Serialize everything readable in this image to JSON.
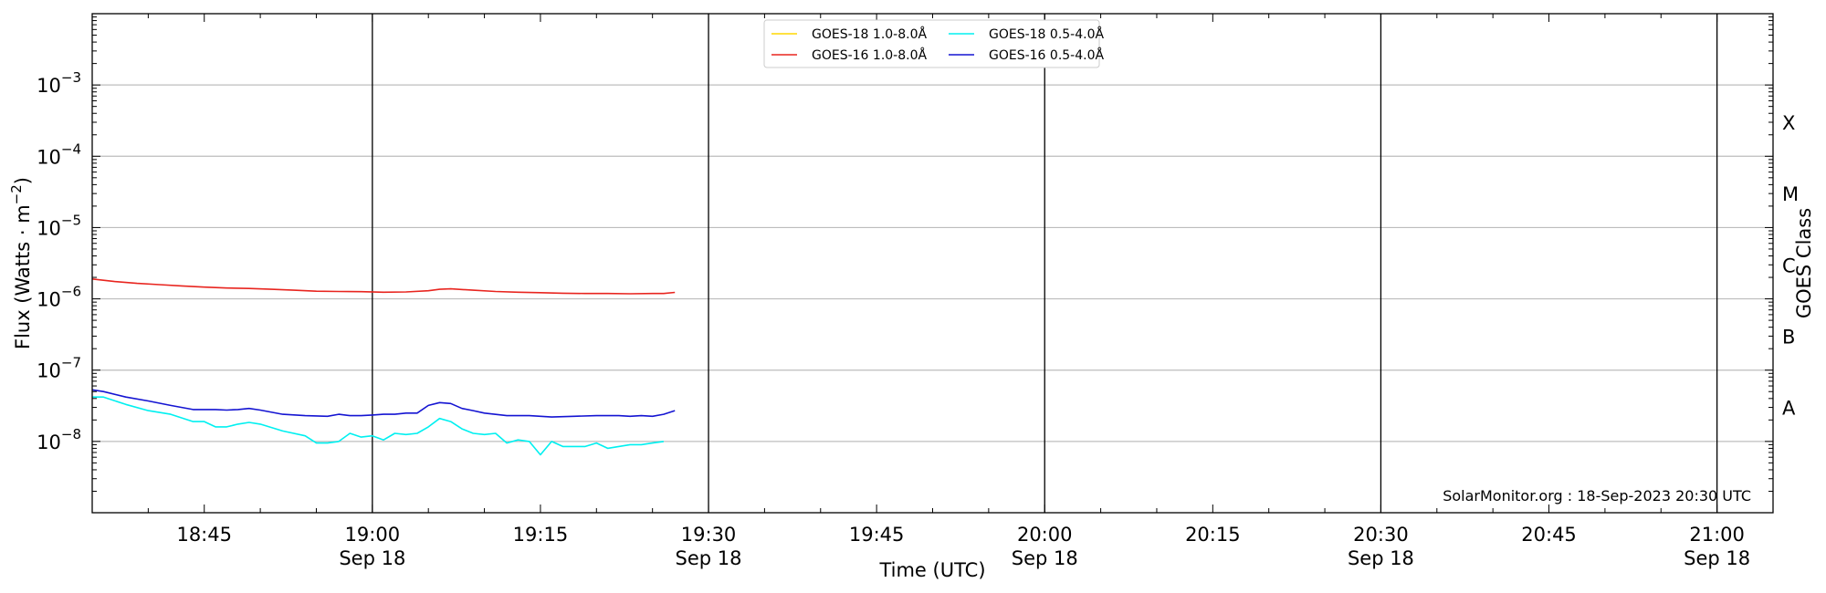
{
  "chart_data": {
    "type": "line",
    "title": "",
    "xlabel": "Time (UTC)",
    "ylabel": "Flux (Watts · m⁻²)",
    "ylabel_right": "GOES Class",
    "yscale": "log",
    "ylim": [
      1e-09,
      0.01
    ],
    "xlim": [
      "18:35",
      "21:05"
    ],
    "grid": "horizontal",
    "legend_position": "top-center",
    "credit": "SolarMonitor.org : 18-Sep-2023 20:30 UTC",
    "y_ticks": [
      {
        "value": 1e-08,
        "label": "10",
        "exp": "−8"
      },
      {
        "value": 1e-07,
        "label": "10",
        "exp": "−7"
      },
      {
        "value": 1e-06,
        "label": "10",
        "exp": "−6"
      },
      {
        "value": 1e-05,
        "label": "10",
        "exp": "−5"
      },
      {
        "value": 0.0001,
        "label": "10",
        "exp": "−4"
      },
      {
        "value": 0.001,
        "label": "10",
        "exp": "−3"
      }
    ],
    "class_labels": [
      {
        "label": "A",
        "value": 3e-08
      },
      {
        "label": "B",
        "value": 3e-07
      },
      {
        "label": "C",
        "value": 3e-06
      },
      {
        "label": "M",
        "value": 3e-05
      },
      {
        "label": "X",
        "value": 0.0003
      }
    ],
    "x_ticks": [
      {
        "time": "18:45",
        "label": "18:45",
        "date": ""
      },
      {
        "time": "19:00",
        "label": "19:00",
        "date": "Sep 18"
      },
      {
        "time": "19:15",
        "label": "19:15",
        "date": ""
      },
      {
        "time": "19:30",
        "label": "19:30",
        "date": "Sep 18"
      },
      {
        "time": "19:45",
        "label": "19:45",
        "date": ""
      },
      {
        "time": "20:00",
        "label": "20:00",
        "date": "Sep 18"
      },
      {
        "time": "20:15",
        "label": "20:15",
        "date": ""
      },
      {
        "time": "20:30",
        "label": "20:30",
        "date": "Sep 18"
      },
      {
        "time": "20:45",
        "label": "20:45",
        "date": ""
      },
      {
        "time": "21:00",
        "label": "21:00",
        "date": "Sep 18"
      }
    ],
    "vertical_lines": [
      "19:00",
      "19:30",
      "20:00",
      "20:30",
      "21:00"
    ],
    "series": [
      {
        "name": "GOES-18 1.0-8.0Å",
        "color": "#ffd700",
        "x": [],
        "y": []
      },
      {
        "name": "GOES-16 1.0-8.0Å",
        "color": "#e8251f",
        "x": [
          "18:35",
          "18:37",
          "18:39",
          "18:41",
          "18:43",
          "18:45",
          "18:47",
          "18:49",
          "18:51",
          "18:53",
          "18:55",
          "18:57",
          "18:59",
          "19:01",
          "19:03",
          "19:05",
          "19:06",
          "19:07",
          "19:09",
          "19:11",
          "19:13",
          "19:15",
          "19:17",
          "19:19",
          "19:21",
          "19:23",
          "19:25",
          "19:26",
          "19:27"
        ],
        "y": [
          1.9e-06,
          1.75e-06,
          1.65e-06,
          1.58e-06,
          1.52e-06,
          1.46e-06,
          1.42e-06,
          1.4e-06,
          1.36e-06,
          1.32e-06,
          1.28e-06,
          1.27e-06,
          1.26e-06,
          1.24e-06,
          1.25e-06,
          1.3e-06,
          1.36e-06,
          1.38e-06,
          1.32e-06,
          1.27e-06,
          1.24e-06,
          1.22e-06,
          1.2e-06,
          1.19e-06,
          1.19e-06,
          1.18e-06,
          1.19e-06,
          1.19e-06,
          1.23e-06
        ]
      },
      {
        "name": "GOES-18 0.5-4.0Å",
        "color": "#00f0f0",
        "x": [
          "18:35",
          "18:36",
          "18:38",
          "18:40",
          "18:42",
          "18:44",
          "18:45",
          "18:46",
          "18:47",
          "18:48",
          "18:49",
          "18:50",
          "18:52",
          "18:54",
          "18:55",
          "18:56",
          "18:57",
          "18:58",
          "18:59",
          "19:00",
          "19:01",
          "19:02",
          "19:03",
          "19:04",
          "19:05",
          "19:06",
          "19:07",
          "19:08",
          "19:09",
          "19:10",
          "19:11",
          "19:12",
          "19:13",
          "19:14",
          "19:15",
          "19:16",
          "19:17",
          "19:18",
          "19:19",
          "19:20",
          "19:21",
          "19:22",
          "19:23",
          "19:24",
          "19:25",
          "19:26"
        ],
        "y": [
          4.2e-08,
          4.2e-08,
          3.3e-08,
          2.7e-08,
          2.4e-08,
          1.9e-08,
          1.9e-08,
          1.6e-08,
          1.6e-08,
          1.75e-08,
          1.85e-08,
          1.75e-08,
          1.4e-08,
          1.2e-08,
          9.5e-09,
          9.5e-09,
          1e-08,
          1.3e-08,
          1.15e-08,
          1.2e-08,
          1.05e-08,
          1.3e-08,
          1.25e-08,
          1.3e-08,
          1.6e-08,
          2.1e-08,
          1.9e-08,
          1.5e-08,
          1.3e-08,
          1.25e-08,
          1.3e-08,
          9.5e-09,
          1.05e-08,
          1e-08,
          6.5e-09,
          1e-08,
          8.5e-09,
          8.5e-09,
          8.5e-09,
          9.5e-09,
          8e-09,
          8.5e-09,
          9e-09,
          9e-09,
          9.5e-09,
          1e-08
        ]
      },
      {
        "name": "GOES-16 0.5-4.0Å",
        "color": "#1414d2",
        "x": [
          "18:35",
          "18:36",
          "18:38",
          "18:40",
          "18:42",
          "18:44",
          "18:46",
          "18:47",
          "18:48",
          "18:49",
          "18:50",
          "18:52",
          "18:54",
          "18:56",
          "18:57",
          "18:58",
          "18:59",
          "19:00",
          "19:01",
          "19:02",
          "19:03",
          "19:04",
          "19:05",
          "19:06",
          "19:07",
          "19:08",
          "19:09",
          "19:10",
          "19:12",
          "19:14",
          "19:16",
          "19:18",
          "19:20",
          "19:22",
          "19:23",
          "19:24",
          "19:25",
          "19:26",
          "19:27"
        ],
        "y": [
          5.3e-08,
          5e-08,
          4.2e-08,
          3.7e-08,
          3.2e-08,
          2.8e-08,
          2.8e-08,
          2.75e-08,
          2.8e-08,
          2.9e-08,
          2.75e-08,
          2.4e-08,
          2.3e-08,
          2.25e-08,
          2.4e-08,
          2.3e-08,
          2.3e-08,
          2.35e-08,
          2.4e-08,
          2.4e-08,
          2.5e-08,
          2.5e-08,
          3.2e-08,
          3.5e-08,
          3.4e-08,
          2.9e-08,
          2.7e-08,
          2.5e-08,
          2.3e-08,
          2.3e-08,
          2.2e-08,
          2.25e-08,
          2.3e-08,
          2.3e-08,
          2.25e-08,
          2.3e-08,
          2.25e-08,
          2.4e-08,
          2.7e-08
        ]
      }
    ]
  }
}
